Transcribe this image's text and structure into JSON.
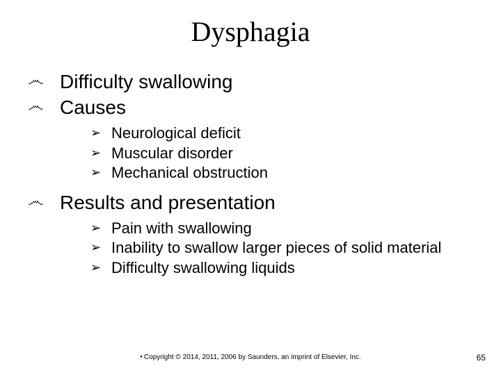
{
  "slide": {
    "title": "Dysphagia",
    "title_font_family": "Times New Roman",
    "title_font_size_pt": 40,
    "body_font_family": "Arial",
    "level1_font_size_pt": 28,
    "level2_font_size_pt": 22,
    "level1_bullet_glyph": "෴",
    "level2_bullet_glyph": "➢",
    "background_color": "#ffffff",
    "text_color": "#000000",
    "items": [
      {
        "text": "Difficulty swallowing",
        "sub": []
      },
      {
        "text": "Causes",
        "sub": [
          {
            "text": "Neurological deficit"
          },
          {
            "text": "Muscular disorder"
          },
          {
            "text": "Mechanical obstruction"
          }
        ]
      },
      {
        "text": "Results and presentation",
        "sub": [
          {
            "text": "Pain with swallowing"
          },
          {
            "text": "Inability to swallow larger pieces of solid material"
          },
          {
            "text": "Difficulty swallowing liquids"
          }
        ]
      }
    ],
    "footer": "Copyright © 2014, 2011, 2006 by Saunders, an imprint of Elsevier, Inc.",
    "footer_font_size_pt": 10,
    "page_number": "65",
    "page_number_font_size_pt": 12
  }
}
